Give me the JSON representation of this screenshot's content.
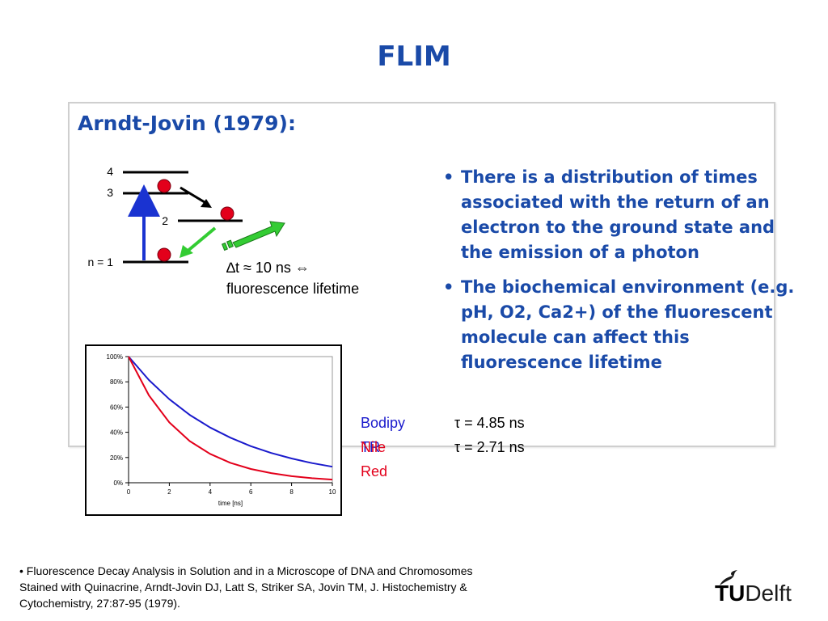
{
  "slide": {
    "title": "FLIM"
  },
  "reference_heading": "Arndt-Jovin (1979):",
  "energy_diagram": {
    "level_4": "4",
    "level_3": "3",
    "level_2": "2",
    "level_1": "n = 1",
    "delta_t_line1": "∆t ≈ 10 ns ⇔",
    "delta_t_line2": "fluorescence lifetime",
    "colors": {
      "electron": "#e3001b",
      "excitation_arrow": "#1a33d1",
      "photon_arrow": "#33cc33"
    }
  },
  "bullets": [
    {
      "dot": "•",
      "text": "There is a distribution of times associated with the return of an electron to the ground state and the emission of a photon"
    },
    {
      "dot": "•",
      "text": "The biochemical environment (e.g. pH, O2, Ca2+) of the fluorescent molecule can affect this fluorescence lifetime"
    }
  ],
  "legend": [
    {
      "name": "Bodipy TR",
      "tau": "τ = 4.85 ns",
      "color": "#1a1acc"
    },
    {
      "name": "Nile Red",
      "tau": "τ = 2.71 ns",
      "color": "#e3001b"
    }
  ],
  "chart_data": {
    "type": "line",
    "xlabel": "time [ns]",
    "ylabel": "",
    "xlim": [
      0,
      10
    ],
    "ylim": [
      0,
      100
    ],
    "x_ticks": [
      "0",
      "2",
      "4",
      "6",
      "8",
      "10"
    ],
    "y_ticks": [
      "0%",
      "20%",
      "40%",
      "60%",
      "80%",
      "100%"
    ],
    "grid": false,
    "series": [
      {
        "color": "#1a1acc",
        "x": [
          0,
          1,
          2,
          3,
          4,
          5,
          6,
          7,
          8,
          9,
          10
        ],
        "y": [
          100,
          81.4,
          66.2,
          53.8,
          43.8,
          35.7,
          29.0,
          23.6,
          19.2,
          15.6,
          12.7
        ]
      },
      {
        "color": "#e3001b",
        "x": [
          0,
          1,
          2,
          3,
          4,
          5,
          6,
          7,
          8,
          9,
          10
        ],
        "y": [
          100,
          69.2,
          47.8,
          33.0,
          22.9,
          15.8,
          10.9,
          7.6,
          5.2,
          3.6,
          2.5
        ]
      }
    ]
  },
  "footnote": "• Fluorescence Decay Analysis in Solution and in a Microscope of DNA and Chromosomes Stained with Quinacrine, Arndt-Jovin DJ, Latt S, Striker SA, Jovin TM, J. Histochemistry & Cytochemistry, 27:87-95 (1979).",
  "logo": {
    "tu": "TU",
    "delft": "Delft"
  }
}
